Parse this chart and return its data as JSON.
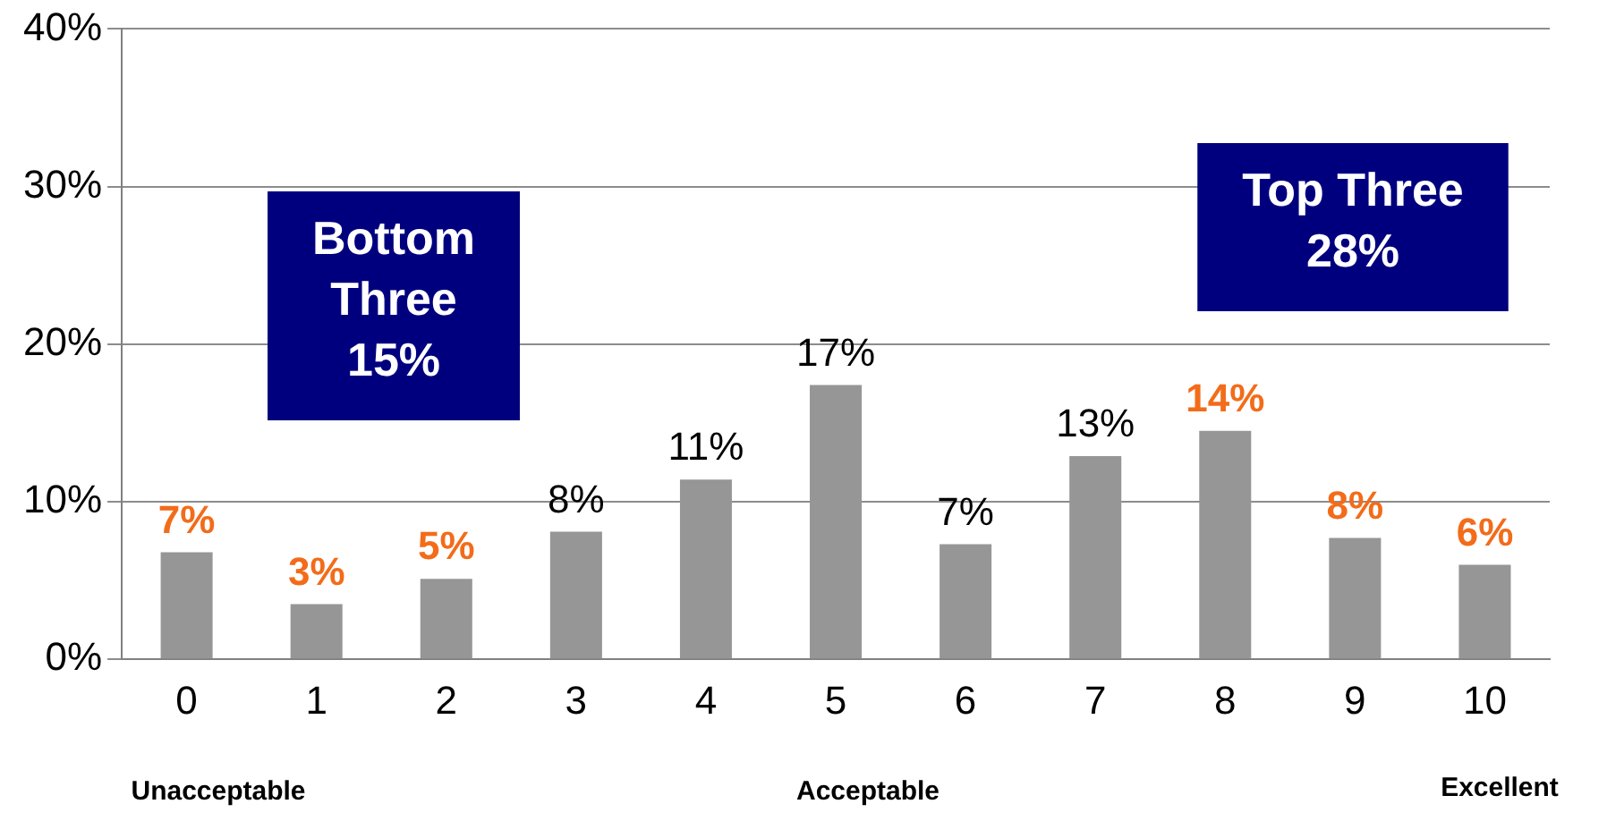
{
  "chart_data": {
    "type": "bar",
    "categories": [
      "0",
      "1",
      "2",
      "3",
      "4",
      "5",
      "6",
      "7",
      "8",
      "9",
      "10"
    ],
    "values": [
      6.8,
      3.5,
      5.1,
      8.1,
      11.4,
      17.4,
      7.3,
      12.9,
      14.5,
      7.7,
      6.0
    ],
    "color": "#969696",
    "value_labels": [
      "7%",
      "3%",
      "5%",
      "8%",
      "11%",
      "17%",
      "7%",
      "13%",
      "14%",
      "8%",
      "6%"
    ],
    "ylim": [
      0,
      40
    ],
    "yticks": [
      {
        "value": 0,
        "label": "0%"
      },
      {
        "value": 10,
        "label": "10%"
      },
      {
        "value": 20,
        "label": "20%"
      },
      {
        "value": 30,
        "label": "30%"
      },
      {
        "value": 40,
        "label": "40%"
      }
    ],
    "grid": "y",
    "legend": false,
    "annotations": [
      "Bottom\nThree\n15%",
      "Top Three\n28%",
      "Unacceptable",
      "Acceptable",
      "Excellent"
    ]
  }
}
